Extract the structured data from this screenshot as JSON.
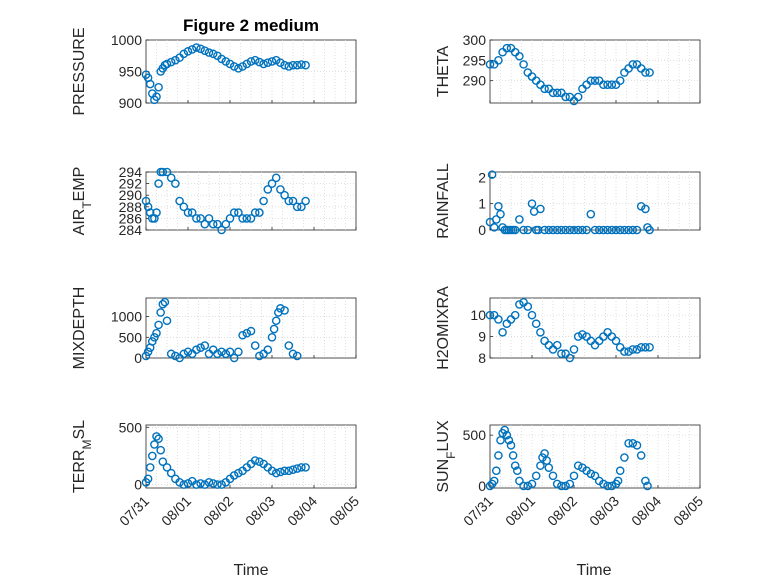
{
  "figure_title": "Figure 2 medium",
  "x_label": "Time",
  "x_ticks": [
    "07/31",
    "08/01",
    "08/02",
    "08/03",
    "08/04",
    "08/05"
  ],
  "colors": {
    "marker": "#0072bd",
    "axes": "#262626",
    "grid": "#d7d7d7"
  },
  "chart_data": [
    {
      "type": "scatter",
      "ylabel": "PRESSURE",
      "title": "Figure 2 medium",
      "xlabel": "Time",
      "xlim": [
        0,
        5
      ],
      "ylim": [
        900,
        1000
      ],
      "yticks": [
        900,
        950,
        1000
      ],
      "grid": true,
      "x": [
        0.0,
        0.05,
        0.1,
        0.15,
        0.2,
        0.25,
        0.3,
        0.35,
        0.4,
        0.45,
        0.5,
        0.6,
        0.7,
        0.8,
        0.9,
        1.0,
        1.1,
        1.2,
        1.3,
        1.4,
        1.5,
        1.6,
        1.7,
        1.8,
        1.9,
        2.0,
        2.1,
        2.2,
        2.3,
        2.4,
        2.5,
        2.6,
        2.7,
        2.8,
        2.9,
        3.0,
        3.1,
        3.2,
        3.3,
        3.4,
        3.5,
        3.6,
        3.7,
        3.8
      ],
      "y": [
        945,
        940,
        930,
        915,
        905,
        910,
        925,
        950,
        955,
        960,
        962,
        965,
        968,
        972,
        978,
        982,
        985,
        988,
        986,
        983,
        980,
        978,
        975,
        970,
        966,
        962,
        958,
        955,
        958,
        962,
        966,
        968,
        965,
        962,
        964,
        966,
        968,
        964,
        960,
        958,
        960,
        960,
        961,
        960
      ]
    },
    {
      "type": "scatter",
      "ylabel": "THETA",
      "xlim": [
        0,
        5
      ],
      "ylim": [
        284.5,
        300
      ],
      "yticks": [
        290,
        295,
        300
      ],
      "grid": true,
      "x": [
        0.0,
        0.1,
        0.2,
        0.3,
        0.4,
        0.5,
        0.6,
        0.7,
        0.8,
        0.9,
        1.0,
        1.1,
        1.2,
        1.3,
        1.4,
        1.5,
        1.6,
        1.7,
        1.8,
        1.9,
        2.0,
        2.1,
        2.2,
        2.3,
        2.4,
        2.5,
        2.6,
        2.7,
        2.8,
        2.9,
        3.0,
        3.1,
        3.2,
        3.3,
        3.4,
        3.5,
        3.6,
        3.7,
        3.8
      ],
      "y": [
        294,
        294,
        295,
        297,
        298,
        298,
        297,
        296,
        294,
        292,
        291,
        290,
        289,
        288,
        288,
        287,
        287,
        287,
        286,
        286,
        285,
        286,
        288,
        289,
        290,
        290,
        290,
        289,
        289,
        289,
        289,
        290,
        292,
        293,
        294,
        294,
        293,
        292,
        292
      ]
    },
    {
      "type": "scatter",
      "ylabel": "AIR_TEMP",
      "ylabel_main": "AIR",
      "ylabel_sub": "T",
      "ylabel_rest": "EMP",
      "xlim": [
        0,
        5
      ],
      "ylim": [
        284,
        294
      ],
      "yticks": [
        284,
        286,
        288,
        290,
        292,
        294
      ],
      "grid": true,
      "x": [
        0.0,
        0.05,
        0.1,
        0.15,
        0.2,
        0.25,
        0.3,
        0.35,
        0.4,
        0.5,
        0.6,
        0.7,
        0.8,
        0.9,
        1.0,
        1.1,
        1.2,
        1.3,
        1.4,
        1.5,
        1.6,
        1.7,
        1.8,
        1.9,
        2.0,
        2.1,
        2.2,
        2.3,
        2.4,
        2.5,
        2.6,
        2.7,
        2.8,
        2.9,
        3.0,
        3.1,
        3.2,
        3.3,
        3.4,
        3.5,
        3.6,
        3.7,
        3.8
      ],
      "y": [
        289,
        288,
        287,
        286,
        286,
        287,
        292,
        294,
        294,
        294,
        293,
        292,
        289,
        288,
        287,
        287,
        286,
        286,
        285,
        286,
        285,
        285,
        284,
        285,
        286,
        287,
        287,
        286,
        286,
        286,
        287,
        287,
        289,
        291,
        292,
        293,
        291,
        290,
        289,
        289,
        288,
        288,
        289
      ]
    },
    {
      "type": "scatter",
      "ylabel": "RAINFALL",
      "xlim": [
        0,
        5
      ],
      "ylim": [
        0,
        2.2
      ],
      "yticks": [
        0,
        1,
        2
      ],
      "grid": true,
      "x": [
        0.0,
        0.05,
        0.1,
        0.15,
        0.2,
        0.25,
        0.3,
        0.35,
        0.4,
        0.45,
        0.5,
        0.55,
        0.6,
        0.7,
        0.8,
        0.9,
        1.0,
        1.05,
        1.1,
        1.15,
        1.2,
        1.3,
        1.4,
        1.5,
        1.6,
        1.7,
        1.8,
        1.9,
        2.0,
        2.1,
        2.2,
        2.3,
        2.4,
        2.5,
        2.6,
        2.7,
        2.8,
        2.9,
        3.0,
        3.1,
        3.2,
        3.3,
        3.4,
        3.5,
        3.6,
        3.7,
        3.75,
        3.8
      ],
      "y": [
        0.3,
        2.1,
        0.1,
        0.4,
        0.9,
        0.6,
        0.1,
        0.0,
        0.0,
        0.0,
        0.0,
        0.0,
        0.0,
        0.4,
        0.0,
        0.0,
        1.0,
        0.7,
        0.0,
        0.0,
        0.8,
        0.0,
        0.0,
        0.0,
        0.0,
        0.0,
        0.0,
        0.0,
        0.0,
        0.0,
        0.0,
        0.0,
        0.6,
        0.0,
        0.0,
        0.0,
        0.0,
        0.0,
        0.0,
        0.0,
        0.0,
        0.0,
        0.0,
        0.0,
        0.9,
        0.8,
        0.1,
        0.0
      ]
    },
    {
      "type": "scatter",
      "ylabel": "MIXDEPTH",
      "xlim": [
        0,
        5
      ],
      "ylim": [
        0,
        1450
      ],
      "yticks": [
        0,
        500,
        1000
      ],
      "grid": true,
      "x": [
        0.0,
        0.05,
        0.1,
        0.15,
        0.2,
        0.25,
        0.3,
        0.35,
        0.4,
        0.45,
        0.5,
        0.6,
        0.7,
        0.8,
        0.9,
        1.0,
        1.1,
        1.2,
        1.3,
        1.4,
        1.5,
        1.6,
        1.7,
        1.8,
        1.9,
        2.0,
        2.1,
        2.2,
        2.3,
        2.4,
        2.5,
        2.6,
        2.7,
        2.8,
        2.9,
        3.0,
        3.05,
        3.1,
        3.15,
        3.2,
        3.3,
        3.4,
        3.5,
        3.6
      ],
      "y": [
        50,
        150,
        250,
        400,
        500,
        600,
        800,
        1100,
        1300,
        1350,
        900,
        100,
        50,
        0,
        100,
        150,
        100,
        200,
        250,
        300,
        100,
        200,
        100,
        150,
        100,
        150,
        0,
        150,
        550,
        600,
        650,
        300,
        50,
        100,
        200,
        500,
        700,
        900,
        1100,
        1200,
        1150,
        300,
        100,
        50
      ]
    },
    {
      "type": "scatter",
      "ylabel": "H2OMIXRA",
      "xlim": [
        0,
        5
      ],
      "ylim": [
        8,
        10.8
      ],
      "yticks": [
        8,
        9,
        10
      ],
      "grid": true,
      "x": [
        0.0,
        0.1,
        0.2,
        0.3,
        0.4,
        0.5,
        0.6,
        0.7,
        0.8,
        0.9,
        1.0,
        1.1,
        1.2,
        1.3,
        1.4,
        1.5,
        1.6,
        1.7,
        1.8,
        1.9,
        2.0,
        2.1,
        2.2,
        2.3,
        2.4,
        2.5,
        2.6,
        2.7,
        2.8,
        2.9,
        3.0,
        3.1,
        3.2,
        3.3,
        3.4,
        3.5,
        3.6,
        3.7,
        3.8
      ],
      "y": [
        10.0,
        10.0,
        9.8,
        9.2,
        9.6,
        9.8,
        10.0,
        10.5,
        10.6,
        10.4,
        10.0,
        9.6,
        9.2,
        8.8,
        8.6,
        8.4,
        8.6,
        8.2,
        8.2,
        8.0,
        8.4,
        9.0,
        9.1,
        9.0,
        8.8,
        8.6,
        8.8,
        9.0,
        9.2,
        9.0,
        8.8,
        8.5,
        8.3,
        8.3,
        8.4,
        8.4,
        8.5,
        8.5,
        8.5
      ]
    },
    {
      "type": "scatter",
      "ylabel": "TERR_MSL",
      "ylabel_main": "TERR",
      "ylabel_sub": "M",
      "ylabel_rest": "SL",
      "xlim": [
        0,
        5
      ],
      "ylim": [
        -30,
        520
      ],
      "yticks": [
        0,
        500
      ],
      "grid": true,
      "x": [
        0.0,
        0.05,
        0.1,
        0.15,
        0.2,
        0.25,
        0.3,
        0.35,
        0.4,
        0.5,
        0.6,
        0.7,
        0.8,
        0.9,
        1.0,
        1.1,
        1.2,
        1.3,
        1.4,
        1.5,
        1.6,
        1.7,
        1.8,
        1.9,
        2.0,
        2.1,
        2.2,
        2.3,
        2.4,
        2.5,
        2.6,
        2.7,
        2.8,
        2.9,
        3.0,
        3.1,
        3.2,
        3.3,
        3.4,
        3.5,
        3.6,
        3.7,
        3.8
      ],
      "y": [
        20,
        50,
        150,
        250,
        350,
        420,
        400,
        300,
        200,
        150,
        100,
        50,
        20,
        0,
        10,
        30,
        0,
        10,
        0,
        20,
        10,
        0,
        0,
        20,
        50,
        80,
        100,
        120,
        150,
        180,
        210,
        200,
        180,
        150,
        120,
        100,
        110,
        120,
        120,
        130,
        140,
        150,
        150
      ]
    },
    {
      "type": "scatter",
      "ylabel": "SUN_FLUX",
      "ylabel_main": "SUN",
      "ylabel_sub": "F",
      "ylabel_rest": "LUX",
      "xlim": [
        0,
        5
      ],
      "ylim": [
        -20,
        600
      ],
      "yticks": [
        0,
        500
      ],
      "grid": true,
      "x": [
        0.0,
        0.05,
        0.1,
        0.15,
        0.2,
        0.25,
        0.3,
        0.35,
        0.4,
        0.45,
        0.5,
        0.55,
        0.6,
        0.65,
        0.7,
        0.8,
        0.9,
        1.0,
        1.1,
        1.2,
        1.25,
        1.3,
        1.35,
        1.4,
        1.5,
        1.6,
        1.7,
        1.8,
        1.9,
        2.0,
        2.1,
        2.2,
        2.3,
        2.4,
        2.5,
        2.6,
        2.7,
        2.8,
        2.9,
        3.0,
        3.05,
        3.1,
        3.2,
        3.3,
        3.4,
        3.5,
        3.6,
        3.7,
        3.75
      ],
      "y": [
        0,
        20,
        50,
        150,
        300,
        450,
        520,
        550,
        500,
        450,
        400,
        300,
        200,
        150,
        50,
        0,
        0,
        20,
        100,
        200,
        280,
        320,
        250,
        180,
        100,
        20,
        0,
        0,
        20,
        100,
        200,
        180,
        150,
        120,
        100,
        50,
        20,
        0,
        0,
        20,
        50,
        150,
        280,
        420,
        420,
        400,
        300,
        50,
        0
      ]
    }
  ]
}
